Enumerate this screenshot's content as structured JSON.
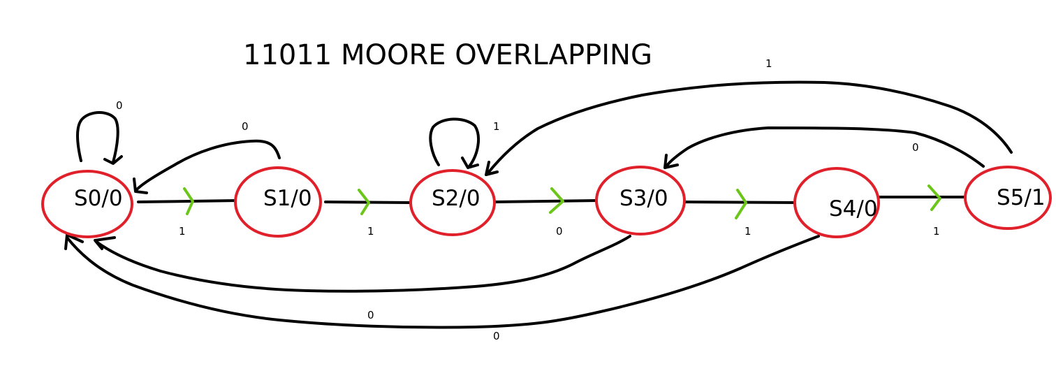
{
  "title": "11011 MOORE OVERLAPPING",
  "colors": {
    "state_outline": "#e0202a",
    "edge": "#000000",
    "forward_arrow": "#6cc61a"
  },
  "states": [
    {
      "id": "s0",
      "label": "S0/0"
    },
    {
      "id": "s1",
      "label": "S1/0"
    },
    {
      "id": "s2",
      "label": "S2/0"
    },
    {
      "id": "s3",
      "label": "S3/0"
    },
    {
      "id": "s4",
      "label": "S4/0"
    },
    {
      "id": "s5",
      "label": "S5/1"
    }
  ],
  "transitions": [
    {
      "id": "s0-s0",
      "from": "S0",
      "to": "S0",
      "input": "0"
    },
    {
      "id": "s0-s1",
      "from": "S0",
      "to": "S1",
      "input": "1"
    },
    {
      "id": "s1-s0",
      "from": "S1",
      "to": "S0",
      "input": "0"
    },
    {
      "id": "s1-s2",
      "from": "S1",
      "to": "S2",
      "input": "1"
    },
    {
      "id": "s2-s2",
      "from": "S2",
      "to": "S2",
      "input": "1"
    },
    {
      "id": "s2-s3",
      "from": "S2",
      "to": "S3",
      "input": "0"
    },
    {
      "id": "s3-s4",
      "from": "S3",
      "to": "S4",
      "input": "1"
    },
    {
      "id": "s3-s0",
      "from": "S3",
      "to": "S0",
      "input": "0"
    },
    {
      "id": "s4-s5",
      "from": "S4",
      "to": "S5",
      "input": "1"
    },
    {
      "id": "s4-s0",
      "from": "S4",
      "to": "S0",
      "input": "0"
    },
    {
      "id": "s5-s2",
      "from": "S5",
      "to": "S2",
      "input": "1"
    },
    {
      "id": "s5-s3",
      "from": "S5",
      "to": "S3",
      "input": "0"
    }
  ]
}
